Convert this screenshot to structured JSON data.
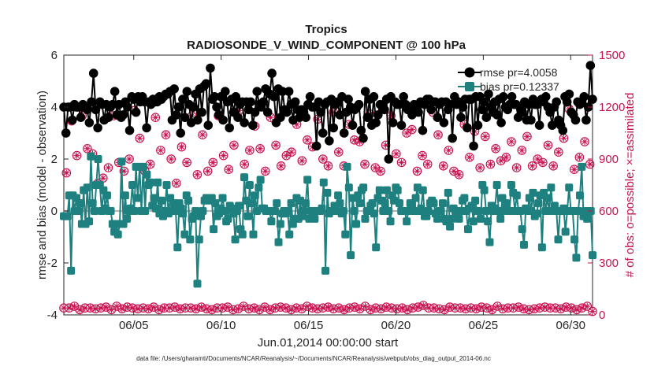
{
  "chart_data": {
    "type": "line",
    "title": "Tropics",
    "subtitle": "RADIOSONDE_V_WIND_COMPONENT @ 100 hPa",
    "xlabel": "Jun.01,2014 00:00:00 start",
    "ylabel_left": "rmse and bias (model - observation)",
    "ylabel_right": "# of obs: o=possible; ×=assimilated",
    "x_ticks": [
      "06/05",
      "06/10",
      "06/15",
      "06/20",
      "06/25",
      "06/30"
    ],
    "x_tick_days": [
      5,
      10,
      15,
      20,
      25,
      30
    ],
    "xlim_days": [
      1,
      31.25
    ],
    "y_left_ticks": [
      "6",
      "4",
      "2",
      "0",
      "-2",
      "-4"
    ],
    "ylim_left": [
      -4,
      6
    ],
    "y_right_ticks": [
      "1500",
      "1200",
      "900",
      "600",
      "300",
      "0"
    ],
    "ylim_right": [
      0,
      1500
    ],
    "zero_line": 0,
    "footnote": "data file: /Users/gharamti/Documents/NCAR/Reanalysis/~/Documents/NCAR/Reanalysis/webpub/obs_diag_output_2014-06.nc",
    "colors": {
      "rmse": "#000000",
      "bias": "#1f8080",
      "obs": "#c8124f",
      "zero": "#b4b4b4"
    },
    "series": [
      {
        "name": "rmse",
        "legend": "rmse pr=4.0058",
        "values": [
          4.0,
          3.0,
          4.0,
          4.0,
          3.5,
          4.1,
          4.0,
          4.0,
          3.6,
          4.1,
          4.0,
          3.9,
          3.4,
          4.2,
          5.3,
          3.9,
          3.2,
          4.2,
          4.1,
          3.5,
          4.1,
          3.6,
          4.0,
          4.1,
          4.6,
          3.7,
          4.1,
          3.6,
          3.7,
          4.2,
          4.0,
          3.1,
          4.4,
          4.3,
          3.8,
          4.4,
          4.2,
          4.4,
          4.2,
          3.2,
          4.2,
          4.1,
          4.3,
          4.2,
          4.2,
          4.4,
          4.3,
          4.4,
          4.5,
          4.5,
          4.6,
          3.5,
          4.7,
          3.7,
          4.0,
          3.0,
          4.3,
          3.6,
          4.6,
          4.1,
          3.4,
          4.0,
          4.5,
          3.5,
          4.7,
          3.8,
          4.8,
          4.9,
          3.3,
          5.5,
          4.3,
          4.4,
          4.0,
          3.7,
          4.4,
          3.5,
          4.6,
          4.2,
          3.2,
          4.3,
          3.8,
          4.4,
          3.6,
          4.1,
          4.2,
          3.4,
          4.2,
          3.9,
          4.2,
          3.3,
          3.8,
          4.6,
          4.1,
          4.0,
          4.2,
          4.7,
          3.8,
          4.5,
          5.3,
          4.4,
          3.4,
          4.7,
          3.6,
          4.6,
          3.9,
          3.8,
          4.6,
          4.1,
          3.5,
          4.2,
          3.9,
          3.6,
          3.9,
          3.8,
          3.6,
          4.1,
          4.4,
          4.0,
          4.0,
          2.5,
          4.2,
          3.8,
          3.0,
          4.1,
          4.2,
          2.7,
          4.3,
          3.2,
          4.1,
          4.2,
          3.7,
          4.4,
          3.0,
          3.8,
          4.3,
          4.0,
          3.3,
          3.9,
          4.0,
          4.1,
          3.1,
          2.8,
          4.6,
          3.6,
          4.3,
          3.3,
          4.4,
          3.4,
          3.7,
          4.1,
          4.0,
          3.9,
          4.3,
          2.0,
          4.4,
          3.4,
          4.2,
          4.1,
          4.1,
          3.3,
          4.4,
          4.1,
          3.9,
          4.0,
          3.7,
          4.1,
          4.0,
          3.8,
          4.2,
          3.1,
          4.1,
          4.3,
          4.3,
          3.9,
          4.2,
          4.2,
          3.6,
          4.1,
          4.2,
          3.4,
          4.2,
          3.9,
          4.1,
          2.8,
          4.4,
          4.1,
          4.2,
          3.6,
          4.0,
          4.3,
          3.2,
          4.3,
          4.3,
          2.5,
          4.4,
          3.3,
          4.4,
          3.9,
          4.2,
          3.6,
          4.5,
          4.0,
          3.8,
          4.2,
          3.7,
          4.3,
          3.4,
          4.4,
          4.0,
          3.9,
          4.1,
          4.4,
          4.1,
          4.1,
          3.6,
          4.0,
          3.8,
          4.2,
          3.5,
          4.1,
          3.5,
          4.3,
          4.1,
          4.1,
          3.3,
          4.3,
          4.2,
          4.4,
          4.0,
          3.8,
          3.3,
          4.0,
          4.2,
          3.5,
          3.3,
          3.1,
          4.4,
          4.2,
          4.5,
          3.8,
          3.7,
          3.5,
          4.2,
          4.1,
          4.2,
          4.4,
          3.5,
          4.0,
          5.6,
          4.3
        ]
      },
      {
        "name": "bias",
        "legend": "bias pr=0.12337",
        "values": [
          -0.2,
          -0.2,
          -0.2,
          0.6,
          -2.3,
          0.6,
          0.0,
          0.5,
          0.0,
          0.3,
          -0.5,
          0.8,
          -0.5,
          0.9,
          -0.4,
          2.1,
          0.3,
          0.0,
          1.0,
          2.0,
          1.0,
          0.0,
          0.8,
          0.1,
          0.6,
          0.0,
          0.0,
          -0.5,
          -0.8,
          -0.5,
          -0.9,
          -0.5,
          1.9,
          -0.5,
          0.6,
          -0.3,
          0.0,
          0.1,
          1.0,
          0.0,
          1.7,
          0.5,
          1.7,
          0.0,
          1.7,
          0.0,
          1.4,
          1.0,
          1.1,
          0.2,
          0.5,
          0.1,
          1.1,
          -0.1,
          0.4,
          -0.2,
          0.0,
          1.0,
          -0.1,
          0.5,
          0.0,
          0.3,
          0.0,
          -1.4,
          0.3,
          0.1,
          -0.1,
          -0.9,
          0.6,
          0.4,
          -1.1,
          -0.3,
          -0.2,
          0.0,
          -2.8,
          -1.1,
          -0.2,
          0.0,
          0.4,
          0.5,
          0.5,
          0.4,
          0.5,
          -0.7,
          0.3,
          -0.2,
          -0.1,
          0.1,
          0.5,
          0.0,
          -0.4,
          -0.3,
          0.2,
          0.1,
          -0.1,
          -1.1,
          0.0,
          0.2,
          -0.7,
          -0.9,
          1.3,
          0.4,
          -0.2,
          1.0,
          0.3,
          -0.9,
          0.6,
          0.0,
          0.9,
          1.2,
          0.1,
          0.1,
          0.0,
          0.0,
          0.0,
          -0.4,
          0.0,
          0.0,
          0.3,
          -1.2,
          -0.5,
          -0.1,
          0.0,
          -0.1,
          0.0,
          -0.9,
          0.3,
          -0.5,
          -0.3,
          0.5,
          -0.3,
          0.4,
          -0.2,
          0.0,
          0.3,
          1.2,
          -0.3,
          0.0,
          0.0,
          -0.3,
          0.0,
          0.0,
          0.0,
          0.1,
          1.1,
          -2.3,
          0.7,
          -0.1,
          0.0,
          0.0,
          0.2,
          0.0,
          0.6,
          0.3,
          -0.1,
          0.0,
          -0.9,
          1.7,
          0.9,
          -1.7,
          0.5,
          0.0,
          -0.5,
          0.6,
          0.3,
          0.8,
          0.9,
          -0.3,
          0.0,
          0.0,
          0.2,
          0.3,
          -0.1,
          -1.4,
          0.5,
          0.8,
          0.4,
          0.0,
          0.3,
          0.8,
          0.0,
          -0.4,
          0.6,
          0.4,
          0.9,
          0.8,
          0.3,
          0.0,
          0.0,
          0.0,
          -0.4,
          0.0,
          0.3,
          0.2,
          0.0,
          0.5,
          0.9,
          0.0,
          0.1,
          0.8,
          -0.2,
          -0.2,
          0.0,
          0.3,
          0.4,
          0.3,
          -0.1,
          -0.3,
          0.0,
          0.0,
          0.3,
          -0.3,
          -0.4,
          0.7,
          -0.6,
          -0.3,
          0.1,
          0.0,
          -0.2,
          -0.3,
          0.0,
          0.4,
          0.5,
          0.0,
          -0.7,
          0.1,
          0.2,
          -0.4,
          0.4,
          0.0,
          0.0,
          -0.3,
          1.0,
          0.8,
          0.0,
          -0.4,
          -1.2,
          0.2,
          0.0,
          0.1,
          1.0,
          0.0,
          -0.3,
          0.5,
          0.0,
          0.3,
          0.0,
          0.0,
          1.0,
          0.7,
          0.0,
          0.6,
          0.0,
          0.0,
          -0.7,
          -1.3,
          0.1,
          0.0,
          0.5,
          0.0,
          0.7,
          -0.2,
          -0.1,
          0.3,
          0.6,
          -1.4,
          0.7,
          0.0,
          0.5,
          0.0,
          0.9,
          0.0,
          0.2,
          0.0,
          -1.1,
          0.0,
          0.0,
          0.1,
          -0.8,
          0.0,
          0.9,
          0.0,
          0.0,
          -1.1,
          -1.8,
          0.0,
          0.6,
          1.7,
          -0.2,
          0.0,
          -0.3,
          0.0,
          0.0,
          -1.7
        ]
      }
    ],
    "obs_possible": [
      820,
      1120,
      920,
      1150,
      960,
      930,
      760,
      790,
      850,
      1150,
      880,
      830,
      900,
      1180,
      1020,
      830,
      870,
      1140,
      950,
      1040,
      900,
      760,
      970,
      880,
      1150,
      810,
      1040,
      830,
      880,
      1150,
      920,
      840,
      980,
      1180,
      870,
      950,
      1090,
      960,
      830,
      1140,
      980,
      860,
      920,
      940,
      1100,
      890,
      1010,
      970,
      1130,
      900,
      860,
      1170,
      940,
      860,
      1100,
      1010,
      1000,
      870,
      1160,
      850,
      830,
      980,
      1150,
      930,
      880,
      1050,
      1070,
      830,
      920,
      870,
      1170,
      1040,
      860,
      950,
      830,
      810,
      1100,
      910,
      1060,
      850,
      1030,
      870,
      960,
      890,
      910,
      1000,
      850,
      950,
      1030,
      860,
      900,
      880,
      980,
      860,
      940,
      1020,
      1190,
      840,
      910,
      1000,
      870
    ],
    "obs_assimilated": [
      40,
      40,
      50,
      30,
      40,
      40,
      35,
      40,
      45,
      30,
      50,
      35,
      45,
      40,
      35,
      40,
      35,
      45,
      30,
      40,
      40,
      45,
      35,
      40,
      40,
      35,
      45,
      35,
      30,
      40,
      40,
      45,
      30,
      35,
      50,
      35,
      40,
      30,
      45,
      30,
      40,
      45,
      40,
      30,
      40,
      35,
      50,
      40,
      35,
      40,
      45,
      35,
      40,
      30,
      40,
      45,
      35,
      50,
      30,
      40,
      35,
      45,
      40,
      35,
      40,
      30,
      40,
      45,
      55,
      40,
      40,
      35,
      30,
      45,
      40,
      40,
      35,
      40,
      35,
      45,
      40,
      30,
      50,
      35,
      40,
      40,
      45,
      35,
      30,
      35,
      40,
      45,
      40,
      40,
      35,
      45,
      40,
      30,
      40,
      50,
      20
    ]
  }
}
